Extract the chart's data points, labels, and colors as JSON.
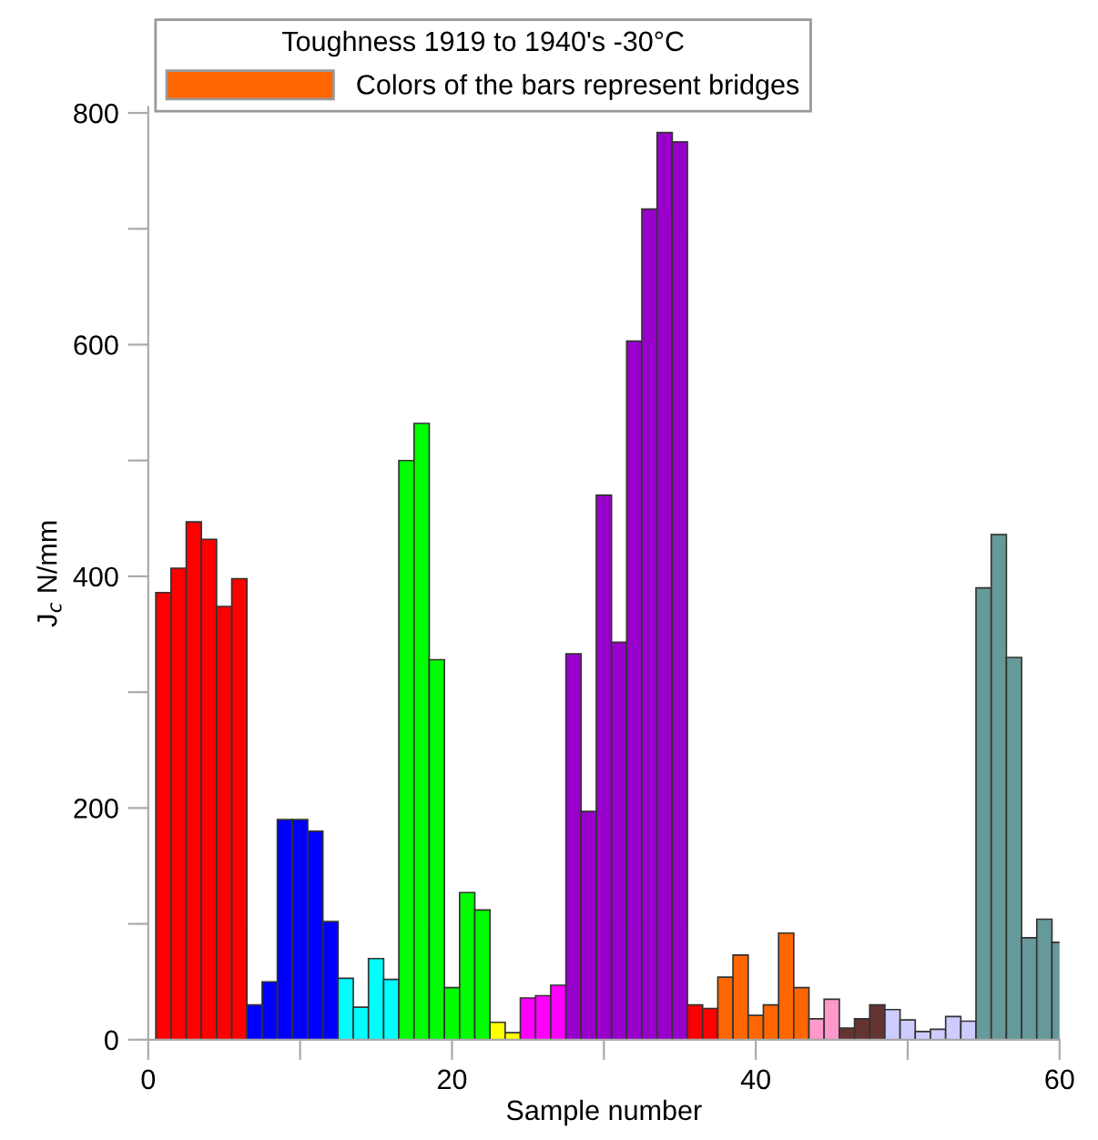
{
  "chart_data": {
    "type": "bar",
    "xlabel": "Sample number",
    "ylabel": "J$_{c}$ N/mm",
    "legend_title": "Toughness 1919 to 1940's -30°C",
    "x": [
      1,
      2,
      3,
      4,
      5,
      6,
      7,
      8,
      9,
      10,
      11,
      12,
      13,
      14,
      15,
      16,
      17,
      18,
      19,
      20,
      21,
      22,
      23,
      24,
      25,
      26,
      27,
      28,
      29,
      30,
      31,
      32,
      33,
      34,
      35,
      36,
      37,
      38,
      39,
      40,
      41,
      42,
      43,
      44,
      45,
      46,
      47,
      48,
      49,
      50,
      51,
      52,
      53,
      54,
      55,
      56,
      57,
      58,
      59,
      60
    ],
    "series": [
      {
        "name": "Colors of the bars represent bridges",
        "color": "#ff6600",
        "values": [
          386,
          407,
          447,
          432,
          374,
          398,
          30,
          50,
          190,
          190,
          180,
          102,
          53,
          28,
          70,
          52,
          500,
          532,
          328,
          45,
          127,
          112,
          15,
          6,
          36,
          38,
          47,
          333,
          197,
          470,
          343,
          603,
          717,
          783,
          775,
          30,
          27,
          54,
          73,
          21,
          30,
          92,
          45,
          18,
          35,
          10,
          18,
          30,
          26,
          17,
          7,
          9,
          20,
          16,
          390,
          436,
          330,
          88,
          104,
          84
        ],
        "colors": [
          "#ff0000",
          "#ff0000",
          "#ff0000",
          "#ff0000",
          "#ff0000",
          "#ff0000",
          "#0000ff",
          "#0000ff",
          "#0000ff",
          "#0000ff",
          "#0000ff",
          "#0000ff",
          "#00ffff",
          "#00ffff",
          "#00ffff",
          "#00ffff",
          "#00ff00",
          "#00ff00",
          "#00ff00",
          "#00ff00",
          "#00ff00",
          "#00ff00",
          "#ffff00",
          "#ffff00",
          "#ff00ff",
          "#ff00ff",
          "#ff00ff",
          "#9900cc",
          "#9900cc",
          "#9900cc",
          "#9900cc",
          "#9900cc",
          "#9900cc",
          "#9900cc",
          "#9900cc",
          "#ff0000",
          "#ff0000",
          "#ff6600",
          "#ff6600",
          "#ff6600",
          "#ff6600",
          "#ff6600",
          "#ff6600",
          "#ff99cc",
          "#ff99cc",
          "#663333",
          "#663333",
          "#663333",
          "#ccccff",
          "#ccccff",
          "#ccccff",
          "#ccccff",
          "#ccccff",
          "#ccccff",
          "#669999",
          "#669999",
          "#669999",
          "#669999",
          "#669999",
          "#669999"
        ]
      }
    ],
    "xlim": [
      0,
      60
    ],
    "ylim": [
      0,
      805
    ],
    "xticks": [
      0,
      {
        "value": 10,
        "label": null
      },
      20,
      {
        "value": 30,
        "label": null
      },
      40,
      {
        "value": 50,
        "label": null
      },
      60
    ],
    "yticks": [
      0,
      {
        "value": 100,
        "label": null
      },
      200,
      {
        "value": 300,
        "label": null
      },
      400,
      {
        "value": 500,
        "label": null
      },
      600,
      {
        "value": 700,
        "label": null
      },
      800
    ],
    "grid": false,
    "legend": "top"
  }
}
